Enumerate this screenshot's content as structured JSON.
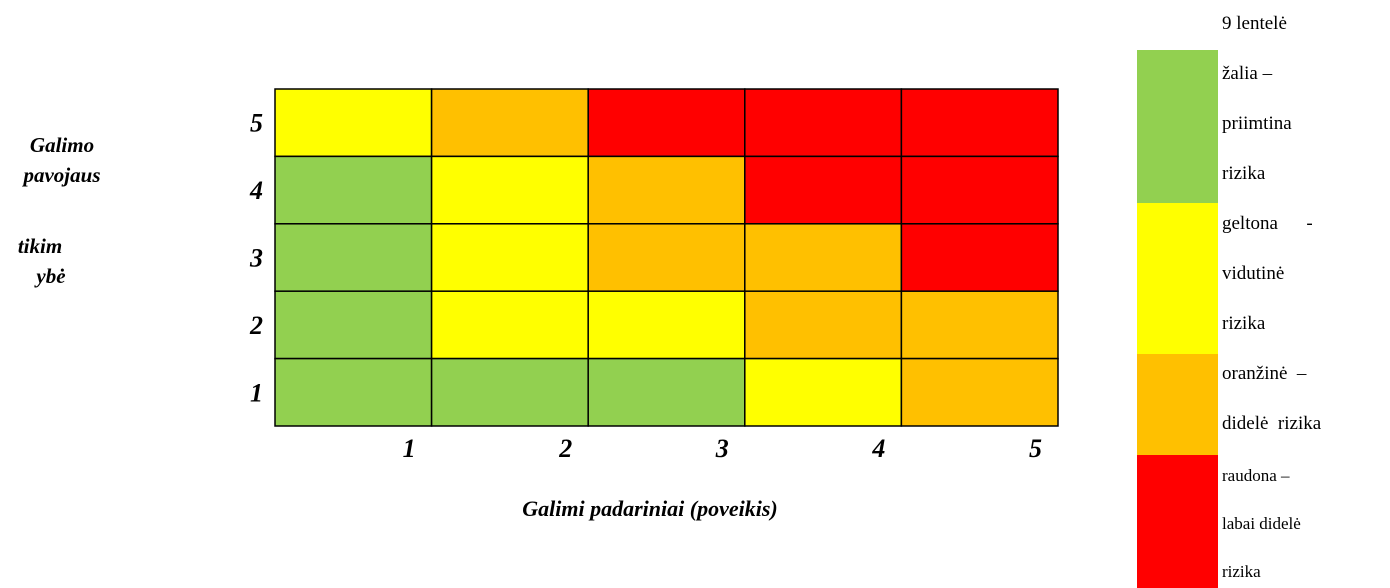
{
  "table_title": "9 lentelė",
  "y_axis_lines": [
    "Galimo",
    "pavojaus",
    "tikim",
    "ybė"
  ],
  "x_axis_label": "Galimi padariniai (poveikis)",
  "legend": [
    {
      "key": "green",
      "color": "#92D050",
      "lines": [
        "žalia –",
        "priimtina",
        "rizika"
      ]
    },
    {
      "key": "yellow",
      "color": "#FFFF00",
      "lines": [
        "geltona      -",
        "vidutinė",
        "rizika"
      ]
    },
    {
      "key": "orange",
      "color": "#FFC000",
      "lines": [
        "oranžinė  –",
        "didelė  rizika"
      ]
    },
    {
      "key": "red",
      "color": "#FF0000",
      "lines": [
        "raudona –",
        "labai didelė",
        "rizika"
      ]
    }
  ],
  "chart_data": {
    "type": "heatmap",
    "x_ticks": [
      "1",
      "2",
      "3",
      "4",
      "5"
    ],
    "y_ticks": [
      "5",
      "4",
      "3",
      "2",
      "1"
    ],
    "xlabel": "Galimi padariniai (poveikis)",
    "ylabel": "Galimo pavojaus tikimybė",
    "colors": {
      "green": "#92D050",
      "yellow": "#FFFF00",
      "orange": "#FFC000",
      "red": "#FF0000"
    },
    "rows": [
      [
        "yellow",
        "orange",
        "red",
        "red",
        "red"
      ],
      [
        "green",
        "yellow",
        "orange",
        "red",
        "red"
      ],
      [
        "green",
        "yellow",
        "orange",
        "orange",
        "red"
      ],
      [
        "green",
        "yellow",
        "yellow",
        "orange",
        "orange"
      ],
      [
        "green",
        "green",
        "green",
        "yellow",
        "orange"
      ]
    ]
  }
}
